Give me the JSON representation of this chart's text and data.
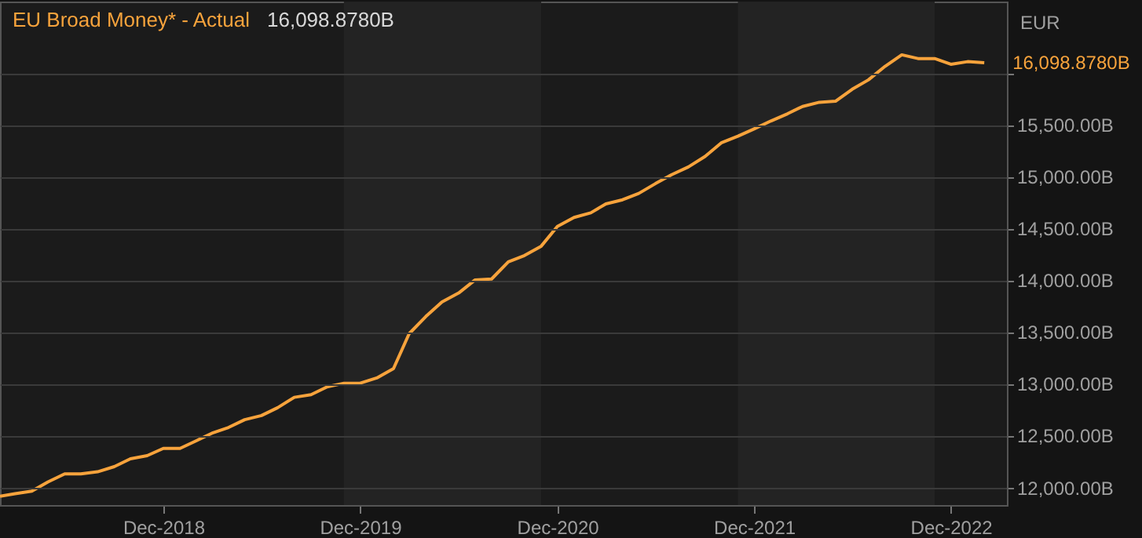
{
  "chart_data": {
    "type": "line",
    "title": "EU Broad Money* - Actual",
    "ylabel": "EUR",
    "annotations": [
      "16,098.8780B",
      {
        "text": "16,098.8780B",
        "x": "2023-02",
        "y": 16098.878
      }
    ],
    "x": [
      "2018-02",
      "2018-03",
      "2018-04",
      "2018-05",
      "2018-06",
      "2018-07",
      "2018-08",
      "2018-09",
      "2018-10",
      "2018-11",
      "2018-12",
      "2019-01",
      "2019-02",
      "2019-03",
      "2019-04",
      "2019-05",
      "2019-06",
      "2019-07",
      "2019-08",
      "2019-09",
      "2019-10",
      "2019-11",
      "2019-12",
      "2020-01",
      "2020-02",
      "2020-03",
      "2020-04",
      "2020-05",
      "2020-06",
      "2020-07",
      "2020-08",
      "2020-09",
      "2020-10",
      "2020-11",
      "2020-12",
      "2021-01",
      "2021-02",
      "2021-03",
      "2021-04",
      "2021-05",
      "2021-06",
      "2021-07",
      "2021-08",
      "2021-09",
      "2021-10",
      "2021-11",
      "2021-12",
      "2022-01",
      "2022-02",
      "2022-03",
      "2022-04",
      "2022-05",
      "2022-06",
      "2022-07",
      "2022-08",
      "2022-09",
      "2022-10",
      "2022-11",
      "2022-12",
      "2023-01",
      "2023-02"
    ],
    "series": [
      {
        "color": "#f7a33c",
        "values": [
          11914,
          11940,
          11965,
          12053,
          12131,
          12131,
          12151,
          12201,
          12277,
          12307,
          12377,
          12377,
          12453,
          12523,
          12579,
          12654,
          12694,
          12770,
          12870,
          12896,
          12971,
          13006,
          13006,
          13057,
          13147,
          13484,
          13650,
          13791,
          13877,
          14002,
          14012,
          14178,
          14239,
          14329,
          14520,
          14606,
          14651,
          14737,
          14777,
          14838,
          14933,
          15019,
          15094,
          15195,
          15326,
          15391,
          15461,
          15537,
          15607,
          15678,
          15718,
          15728,
          15844,
          15934,
          16065,
          16176,
          16140,
          16140,
          16085,
          16110,
          16098.878
        ]
      }
    ],
    "xlim": [
      "2018-02",
      "2023-03-15"
    ],
    "xticks": [
      {
        "value": "2018-12",
        "label": "Dec-2018"
      },
      {
        "value": "2019-12",
        "label": "Dec-2019"
      },
      {
        "value": "2020-12",
        "label": "Dec-2020"
      },
      {
        "value": "2021-12",
        "label": "Dec-2021"
      },
      {
        "value": "2022-12",
        "label": "Dec-2022"
      }
    ],
    "ylim": [
      11830,
      16690
    ],
    "yticks": [
      {
        "value": 12000,
        "label": "12,000.00B"
      },
      {
        "value": 12500,
        "label": "12,500.00B"
      },
      {
        "value": 13000,
        "label": "13,000.00B"
      },
      {
        "value": 13500,
        "label": "13,500.00B"
      },
      {
        "value": 14000,
        "label": "14,000.00B"
      },
      {
        "value": 14500,
        "label": "14,500.00B"
      },
      {
        "value": 15000,
        "label": "15,000.00B"
      },
      {
        "value": 15500,
        "label": "15,500.00B"
      },
      {
        "value": 16000,
        "label": null
      }
    ],
    "bands": [
      {
        "axis": "x",
        "from": "2019-11",
        "to": "2020-11",
        "color": "#232323"
      },
      {
        "axis": "x",
        "from": "2021-11",
        "to": "2022-11",
        "color": "#232323"
      }
    ],
    "grid": "y",
    "marker": "none",
    "line_style": "solid"
  }
}
